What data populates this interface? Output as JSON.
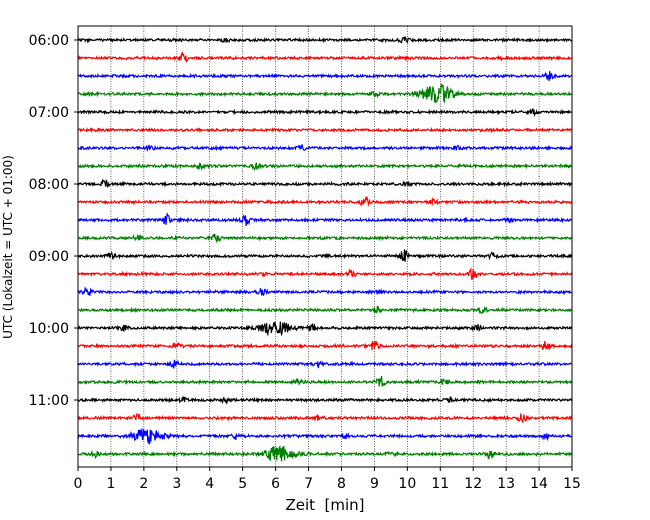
{
  "chart_data": {
    "type": "line",
    "xlabel": "Zeit  [min]",
    "ylabel": "UTC (Lokalzeit = UTC + 01:00)",
    "xlim": [
      0,
      15
    ],
    "xticks": [
      "0",
      "1",
      "2",
      "3",
      "4",
      "5",
      "6",
      "7",
      "8",
      "9",
      "10",
      "11",
      "12",
      "13",
      "14",
      "15"
    ],
    "ytick_labels": [
      "06:00",
      "07:00",
      "08:00",
      "09:00",
      "10:00",
      "11:00"
    ],
    "row_interval_minutes": 15,
    "start_time": "06:00",
    "grid": "vertical dotted lines at each minute",
    "colors": [
      "#000000",
      "#ff0000",
      "#0000ff",
      "#008000"
    ],
    "rows": [
      {
        "time": "06:00",
        "color": "#000000",
        "events": [
          [
            9.9,
            0.4
          ],
          [
            4.5,
            0.3
          ]
        ]
      },
      {
        "time": "06:15",
        "color": "#ff0000",
        "events": [
          [
            3.2,
            0.8
          ],
          [
            12.9,
            0.3
          ]
        ]
      },
      {
        "time": "06:30",
        "color": "#0000ff",
        "events": [
          [
            14.3,
            0.7
          ]
        ]
      },
      {
        "time": "06:45",
        "color": "#008000",
        "events": [
          [
            10.9,
            1.6
          ],
          [
            9.0,
            0.4
          ],
          [
            0.4,
            0.3
          ]
        ]
      },
      {
        "time": "07:00",
        "color": "#000000",
        "events": [
          [
            13.8,
            0.4
          ]
        ]
      },
      {
        "time": "07:15",
        "color": "#ff0000",
        "events": []
      },
      {
        "time": "07:30",
        "color": "#0000ff",
        "events": [
          [
            6.8,
            0.5
          ],
          [
            2.2,
            0.3
          ],
          [
            11.5,
            0.3
          ]
        ]
      },
      {
        "time": "07:45",
        "color": "#008000",
        "events": [
          [
            5.4,
            0.5
          ],
          [
            3.7,
            0.3
          ]
        ]
      },
      {
        "time": "08:00",
        "color": "#000000",
        "events": [
          [
            0.8,
            0.6
          ],
          [
            10.0,
            0.3
          ]
        ]
      },
      {
        "time": "08:15",
        "color": "#ff0000",
        "events": [
          [
            8.7,
            0.7
          ],
          [
            10.8,
            0.4
          ]
        ]
      },
      {
        "time": "08:30",
        "color": "#0000ff",
        "events": [
          [
            2.7,
            0.8
          ],
          [
            5.1,
            0.9
          ],
          [
            13.1,
            0.3
          ]
        ]
      },
      {
        "time": "08:45",
        "color": "#008000",
        "events": [
          [
            4.2,
            0.7
          ],
          [
            1.8,
            0.4
          ]
        ]
      },
      {
        "time": "09:00",
        "color": "#000000",
        "events": [
          [
            9.9,
            1.0
          ],
          [
            1.0,
            0.5
          ],
          [
            12.6,
            0.4
          ]
        ]
      },
      {
        "time": "09:15",
        "color": "#ff0000",
        "events": [
          [
            12.0,
            0.9
          ],
          [
            8.3,
            0.6
          ],
          [
            5.6,
            0.3
          ]
        ]
      },
      {
        "time": "09:30",
        "color": "#0000ff",
        "events": [
          [
            0.3,
            0.7
          ],
          [
            5.6,
            0.6
          ],
          [
            9.1,
            0.4
          ]
        ]
      },
      {
        "time": "09:45",
        "color": "#008000",
        "events": [
          [
            9.1,
            0.5
          ],
          [
            12.3,
            0.5
          ]
        ]
      },
      {
        "time": "10:00",
        "color": "#000000",
        "events": [
          [
            6.0,
            1.1
          ],
          [
            7.1,
            0.7
          ],
          [
            12.1,
            0.7
          ],
          [
            1.4,
            0.4
          ]
        ]
      },
      {
        "time": "10:15",
        "color": "#ff0000",
        "events": [
          [
            9.0,
            0.8
          ],
          [
            14.2,
            0.9
          ],
          [
            3.0,
            0.4
          ]
        ]
      },
      {
        "time": "10:30",
        "color": "#0000ff",
        "events": [
          [
            2.9,
            0.8
          ],
          [
            7.3,
            0.4
          ]
        ]
      },
      {
        "time": "10:45",
        "color": "#008000",
        "events": [
          [
            9.2,
            1.0
          ],
          [
            11.1,
            0.4
          ],
          [
            6.7,
            0.3
          ]
        ]
      },
      {
        "time": "11:00",
        "color": "#000000",
        "events": [
          [
            3.2,
            0.4
          ],
          [
            4.5,
            0.3
          ],
          [
            11.3,
            0.3
          ]
        ]
      },
      {
        "time": "11:15",
        "color": "#ff0000",
        "events": [
          [
            13.5,
            0.8
          ],
          [
            1.8,
            0.5
          ],
          [
            7.3,
            0.3
          ]
        ]
      },
      {
        "time": "11:30",
        "color": "#0000ff",
        "events": [
          [
            2.1,
            1.2
          ],
          [
            4.8,
            0.5
          ],
          [
            8.1,
            0.4
          ],
          [
            14.2,
            0.5
          ]
        ]
      },
      {
        "time": "11:45",
        "color": "#008000",
        "events": [
          [
            6.1,
            1.3
          ],
          [
            12.5,
            0.7
          ],
          [
            0.5,
            0.6
          ],
          [
            9.5,
            0.3
          ]
        ]
      }
    ]
  }
}
